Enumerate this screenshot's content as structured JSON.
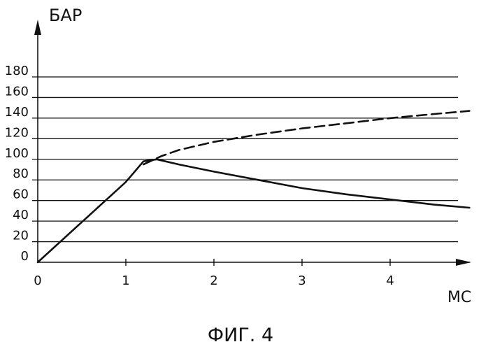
{
  "chart_data": {
    "type": "line",
    "title": "",
    "xlabel": "МС",
    "ylabel": "БАР",
    "xlim": [
      0,
      4.9
    ],
    "ylim": [
      0,
      180
    ],
    "x_ticks": [
      0,
      1,
      2,
      3,
      4
    ],
    "y_ticks": [
      0,
      20,
      40,
      60,
      80,
      100,
      120,
      140,
      160,
      180
    ],
    "grid": "horizontal",
    "series": [
      {
        "style": "solid",
        "x": [
          0,
          0.5,
          1.0,
          1.2,
          1.35,
          1.6,
          2.0,
          2.5,
          3.0,
          3.5,
          4.0,
          4.5,
          4.9
        ],
        "y": [
          0,
          39,
          78,
          98,
          100,
          95,
          88,
          80,
          72,
          66,
          61,
          56,
          53
        ]
      },
      {
        "style": "dashed",
        "x": [
          1.2,
          1.4,
          1.6,
          2.0,
          2.5,
          3.0,
          3.5,
          4.0,
          4.5,
          4.9
        ],
        "y": [
          95,
          103,
          109,
          117,
          124,
          130,
          135,
          140,
          144,
          147
        ]
      }
    ]
  },
  "caption": "ФИГ. 4"
}
